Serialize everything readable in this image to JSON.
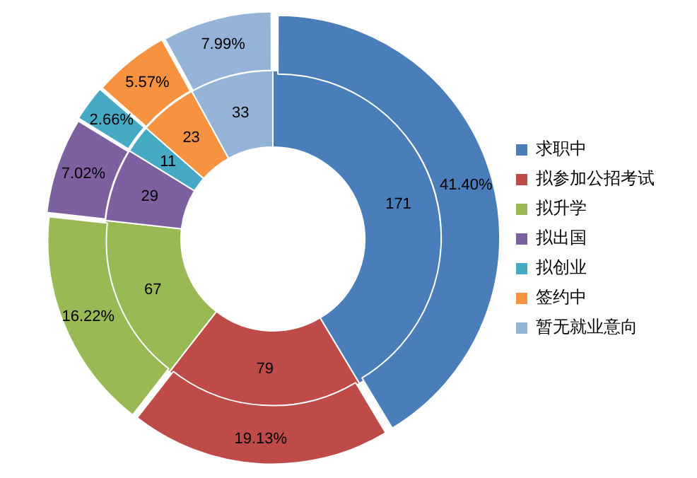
{
  "chart_data": {
    "type": "donut",
    "categories": [
      "求职中",
      "拟参加公招考试",
      "拟升学",
      "拟出国",
      "拟创业",
      "签约中",
      "暂无就业意向"
    ],
    "colors": [
      "#4a7ebb",
      "#be4b48",
      "#98b954",
      "#7d60a0",
      "#46aac5",
      "#f69240",
      "#95b3d7"
    ],
    "legend": "right",
    "series": [
      {
        "values": [
          171,
          79,
          67,
          29,
          11,
          23,
          33
        ],
        "value_labels": [
          "171",
          "79",
          "67",
          "29",
          "11",
          "23",
          "33"
        ]
      },
      {
        "values": [
          41.4,
          19.13,
          16.22,
          7.02,
          2.66,
          5.57,
          7.99
        ],
        "value_labels": [
          "41.40%",
          "19.13%",
          "16.22%",
          "7.02%",
          "2.66%",
          "5.57%",
          "7.99%"
        ]
      }
    ]
  }
}
